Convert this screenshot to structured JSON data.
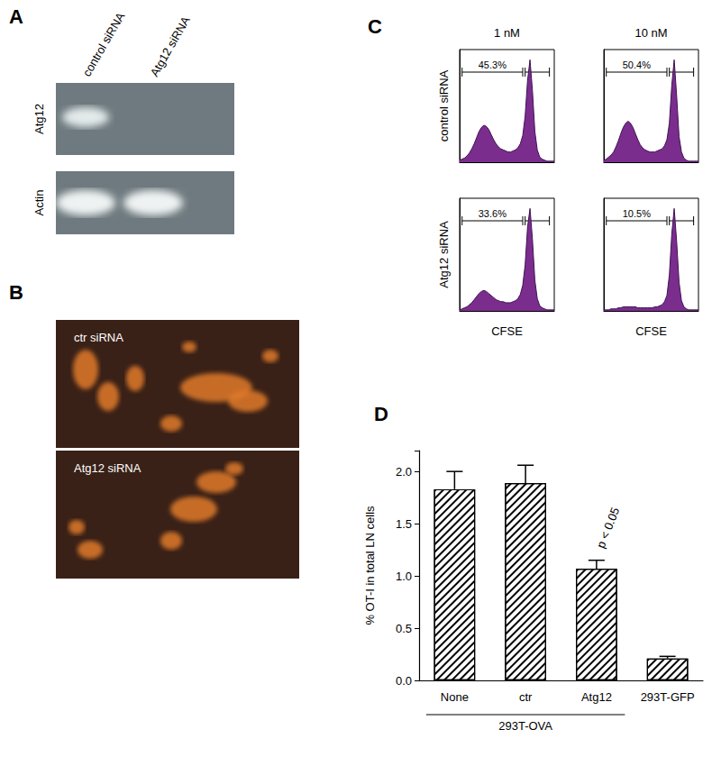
{
  "panels": {
    "A": {
      "label": "A",
      "lanes": [
        "control siRNA",
        "Atg12 siRNA"
      ],
      "rows": [
        "Atg12",
        "Actin"
      ]
    },
    "B": {
      "label": "B",
      "images": [
        "ctr siRNA",
        "Atg12 siRNA"
      ]
    }
  },
  "chart_data": [
    {
      "type": "area",
      "label": "C",
      "columns": [
        "1 nM",
        "10 nM"
      ],
      "rows": [
        "control siRNA",
        "Atg12 siRNA"
      ],
      "xlabel": "CFSE",
      "x": [
        0,
        1,
        2,
        3,
        4,
        5,
        6,
        7,
        8,
        9,
        10,
        11,
        12,
        13,
        14,
        15,
        16,
        17,
        18,
        19,
        20,
        21,
        22,
        23,
        24,
        25,
        26,
        27,
        28,
        29,
        30,
        31,
        32,
        33,
        34,
        35,
        36,
        37,
        38,
        39
      ],
      "xlim": [
        0,
        39
      ],
      "ylim": [
        0,
        110
      ],
      "tick_labels": false,
      "color": "#7b2d8e",
      "cells": [
        {
          "row": 0,
          "column": 0,
          "values": [
            2,
            3,
            4,
            6,
            9,
            13,
            18,
            24,
            30,
            34,
            36,
            35,
            32,
            27,
            22,
            18,
            15,
            13,
            12,
            11,
            10,
            10,
            11,
            12,
            14,
            18,
            26,
            45,
            80,
            100,
            70,
            30,
            12,
            5,
            3,
            2,
            1,
            1,
            1,
            1
          ],
          "gates": [
            {
              "range": [
                1,
                26
              ],
              "label": "45.3%"
            },
            {
              "range": [
                27,
                37
              ]
            }
          ]
        },
        {
          "row": 0,
          "column": 1,
          "values": [
            2,
            3,
            5,
            7,
            10,
            15,
            21,
            28,
            34,
            38,
            40,
            38,
            34,
            28,
            22,
            17,
            14,
            12,
            11,
            10,
            10,
            10,
            11,
            12,
            13,
            16,
            22,
            38,
            75,
            100,
            65,
            25,
            10,
            4,
            2,
            1,
            1,
            1,
            1,
            1
          ],
          "gates": [
            {
              "range": [
                1,
                26
              ],
              "label": "50.4%"
            },
            {
              "range": [
                27,
                37
              ]
            }
          ]
        },
        {
          "row": 1,
          "column": 0,
          "values": [
            1,
            2,
            3,
            4,
            6,
            8,
            11,
            14,
            17,
            19,
            20,
            19,
            17,
            15,
            13,
            11,
            10,
            9,
            9,
            8,
            8,
            8,
            9,
            10,
            12,
            16,
            25,
            45,
            82,
            100,
            70,
            30,
            12,
            5,
            3,
            2,
            1,
            1,
            1,
            1
          ],
          "gates": [
            {
              "range": [
                1,
                26
              ],
              "label": "33.6%"
            },
            {
              "range": [
                27,
                37
              ]
            }
          ]
        },
        {
          "row": 1,
          "column": 1,
          "values": [
            1,
            1,
            1,
            2,
            2,
            2,
            3,
            3,
            4,
            4,
            4,
            4,
            4,
            4,
            3,
            3,
            3,
            3,
            3,
            3,
            3,
            4,
            4,
            5,
            6,
            9,
            15,
            35,
            75,
            100,
            68,
            28,
            10,
            4,
            2,
            1,
            1,
            1,
            1,
            1
          ],
          "gates": [
            {
              "range": [
                1,
                26
              ],
              "label": "10.5%"
            },
            {
              "range": [
                27,
                37
              ]
            }
          ]
        }
      ]
    },
    {
      "type": "bar",
      "label": "D",
      "categories": [
        "None",
        "ctr",
        "Atg12",
        "293T-GFP"
      ],
      "values": [
        1.83,
        1.89,
        1.07,
        0.21
      ],
      "errors": [
        0.17,
        0.17,
        0.08,
        0.02
      ],
      "ylabel": "% OT-I in total LN cells",
      "ylim": [
        0,
        2.2
      ],
      "yticks": [
        {
          "value": 0,
          "label": "0.0"
        },
        {
          "value": 0.5,
          "label": "0.5"
        },
        {
          "value": 1,
          "label": "1.0"
        },
        {
          "value": 1.5,
          "label": "1.5"
        },
        {
          "value": 2,
          "label": "2.0"
        }
      ],
      "color": "#000000",
      "groups": [
        {
          "label": "293T-OVA",
          "categories": [
            0,
            1,
            2
          ]
        }
      ],
      "annotations": [
        {
          "text": "p < 0.05",
          "category": 2
        }
      ]
    }
  ]
}
